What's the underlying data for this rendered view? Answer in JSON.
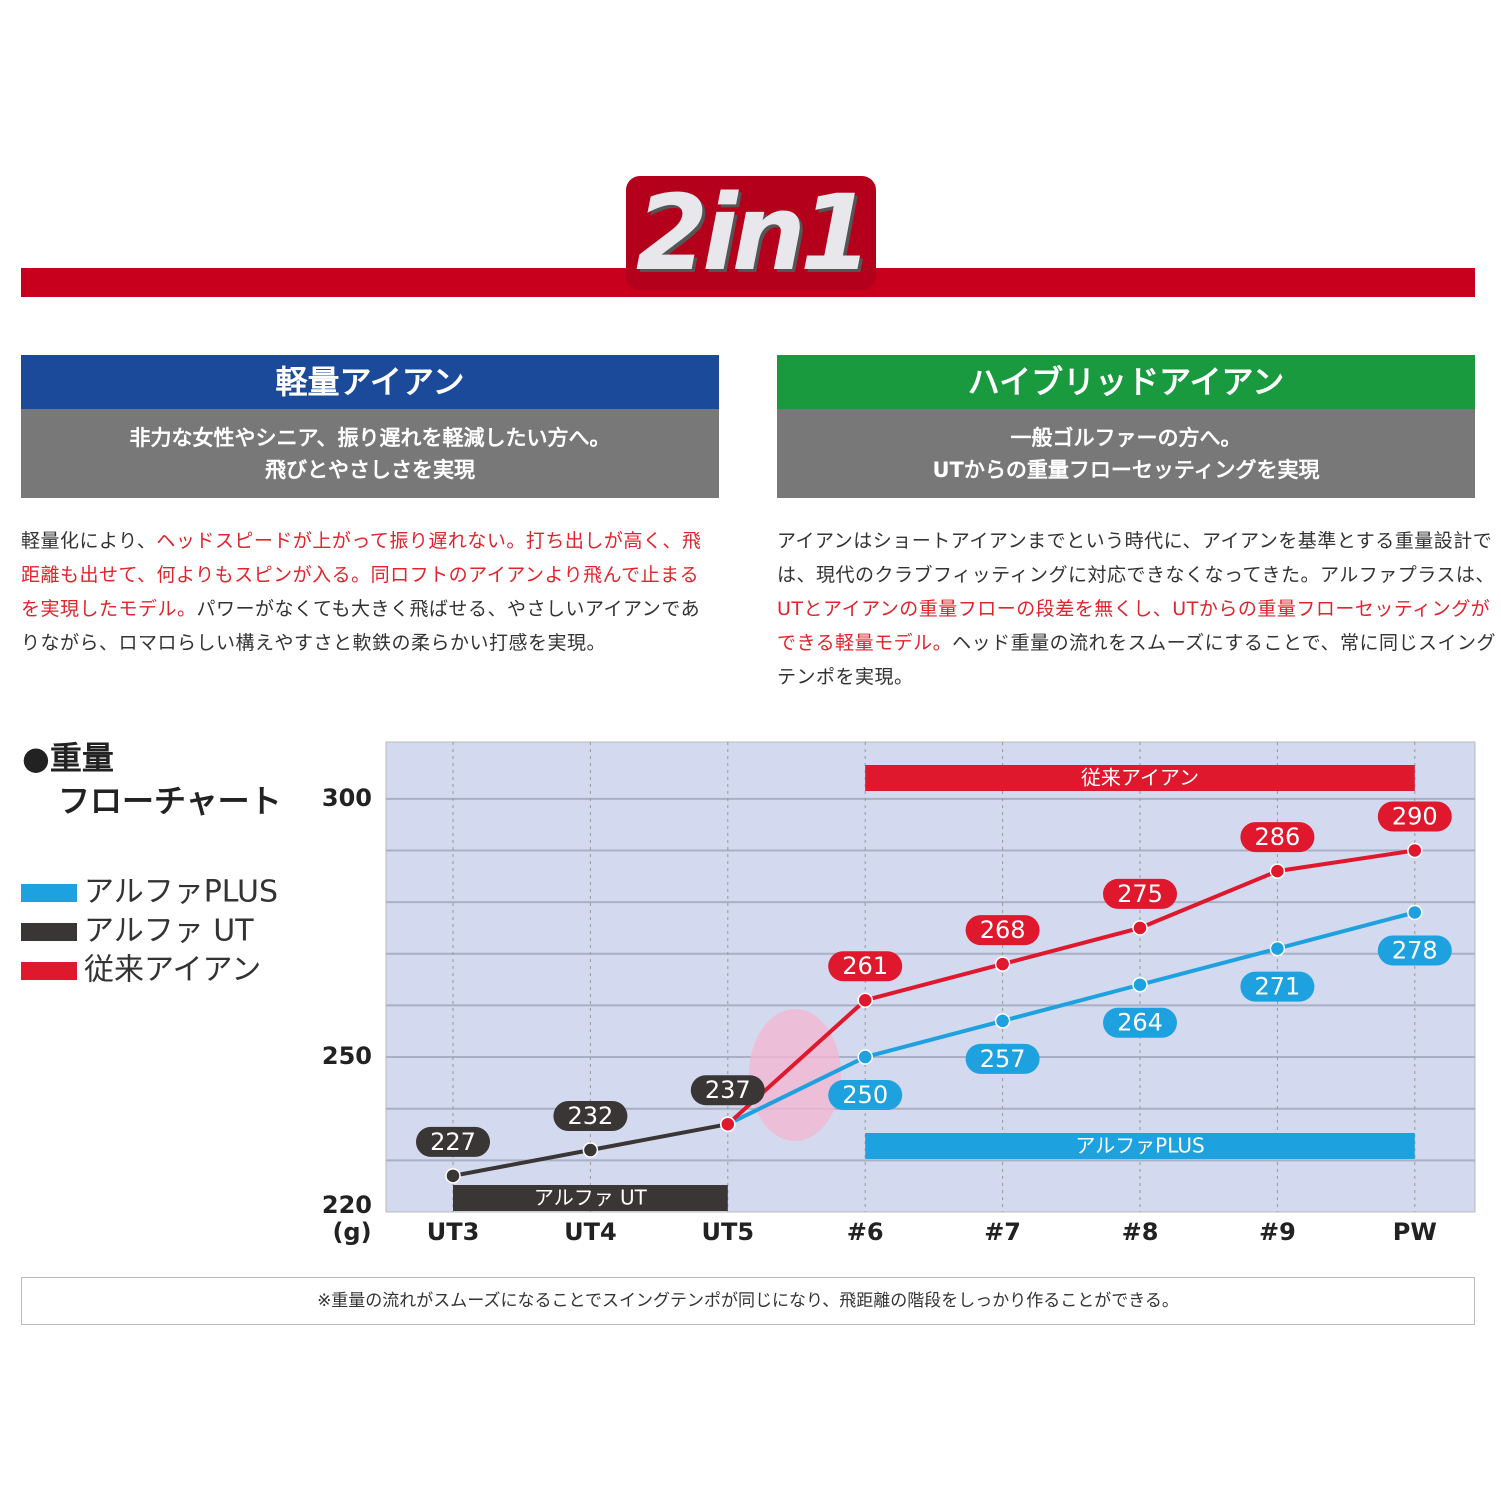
{
  "logo": "2in1",
  "columns": [
    {
      "title": "軽量アイアン",
      "color": "#1b4a9b",
      "subtitle": [
        "非力な女性やシニア、振り遅れを軽減したい方へ。",
        "飛びとやさしさを実現"
      ],
      "body": [
        {
          "text": "軽量化により、",
          "emphasis": false
        },
        {
          "text": "ヘッドスピードが上がって振り遅れない。打ち出しが高く、飛距離も出せて、何よりもスピンが入る。同ロフトのアイアンより飛んで止まるを実現したモデル。",
          "emphasis": true
        },
        {
          "text": "パワーがなくても大きく飛ばせる、やさしいアイアンでありながら、ロマロらしい構えやすさと軟鉄の柔らかい打感を実現。",
          "emphasis": false
        }
      ]
    },
    {
      "title": "ハイブリッドアイアン",
      "color": "#1a9a3f",
      "subtitle": [
        "一般ゴルファーの方へ。",
        "UTからの重量フローセッティングを実現"
      ],
      "body": [
        {
          "text": "アイアンはショートアイアンまでという時代に、アイアンを基準とする重量設計では、現代のクラブフィッティングに対応できなくなってきた。アルファプラスは、",
          "emphasis": false
        },
        {
          "text": "UTとアイアンの重量フローの段差を無くし、UTからの重量フローセッティングができる軽量モデル。",
          "emphasis": true
        },
        {
          "text": "ヘッド重量の流れをスムーズにすることで、常に同じスイングテンポを実現。",
          "emphasis": false
        }
      ]
    }
  ],
  "chart_data": {
    "type": "line",
    "title": [
      "●重量",
      "フローチャート"
    ],
    "y_unit": "(g)",
    "categories": [
      "UT3",
      "UT4",
      "UT5",
      "#6",
      "#7",
      "#8",
      "#9",
      "PW"
    ],
    "ylim": [
      220,
      311
    ],
    "yticks": [
      220,
      250,
      300
    ],
    "ygrid": [
      230,
      240,
      250,
      260,
      270,
      280,
      290,
      300
    ],
    "series": [
      {
        "name": "アルファPLUS",
        "color": "#1ea2df",
        "label_side": "below",
        "values": [
          null,
          null,
          237,
          250,
          257,
          264,
          271,
          278
        ],
        "value_labels": [
          null,
          null,
          null,
          "250",
          "257",
          "264",
          "271",
          "278"
        ]
      },
      {
        "name": "アルファ UT",
        "color": "#3a3636",
        "label_side": "above",
        "values": [
          227,
          232,
          237,
          null,
          null,
          null,
          null,
          null
        ],
        "value_labels": [
          "227",
          "232",
          "237",
          null,
          null,
          null,
          null,
          null
        ]
      },
      {
        "name": "従来アイアン",
        "color": "#e0182d",
        "label_side": "above",
        "values": [
          null,
          null,
          237,
          261,
          268,
          275,
          286,
          290
        ],
        "value_labels": [
          null,
          null,
          null,
          "261",
          "268",
          "275",
          "286",
          "290"
        ]
      }
    ],
    "bands": [
      {
        "label": "従来アイアン",
        "from": "#6",
        "to": "PW",
        "color": "#e0182d"
      },
      {
        "label": "アルファPLUS",
        "from": "#6",
        "to": "PW",
        "color": "#1ea2df"
      },
      {
        "label": "アルファ UT",
        "from": "UT3",
        "to": "UT5",
        "color": "#3a3636"
      }
    ]
  },
  "note": "※重量の流れがスムーズになることでスイングテンポが同じになり、飛距離の階段をしっかり作ることができる。"
}
